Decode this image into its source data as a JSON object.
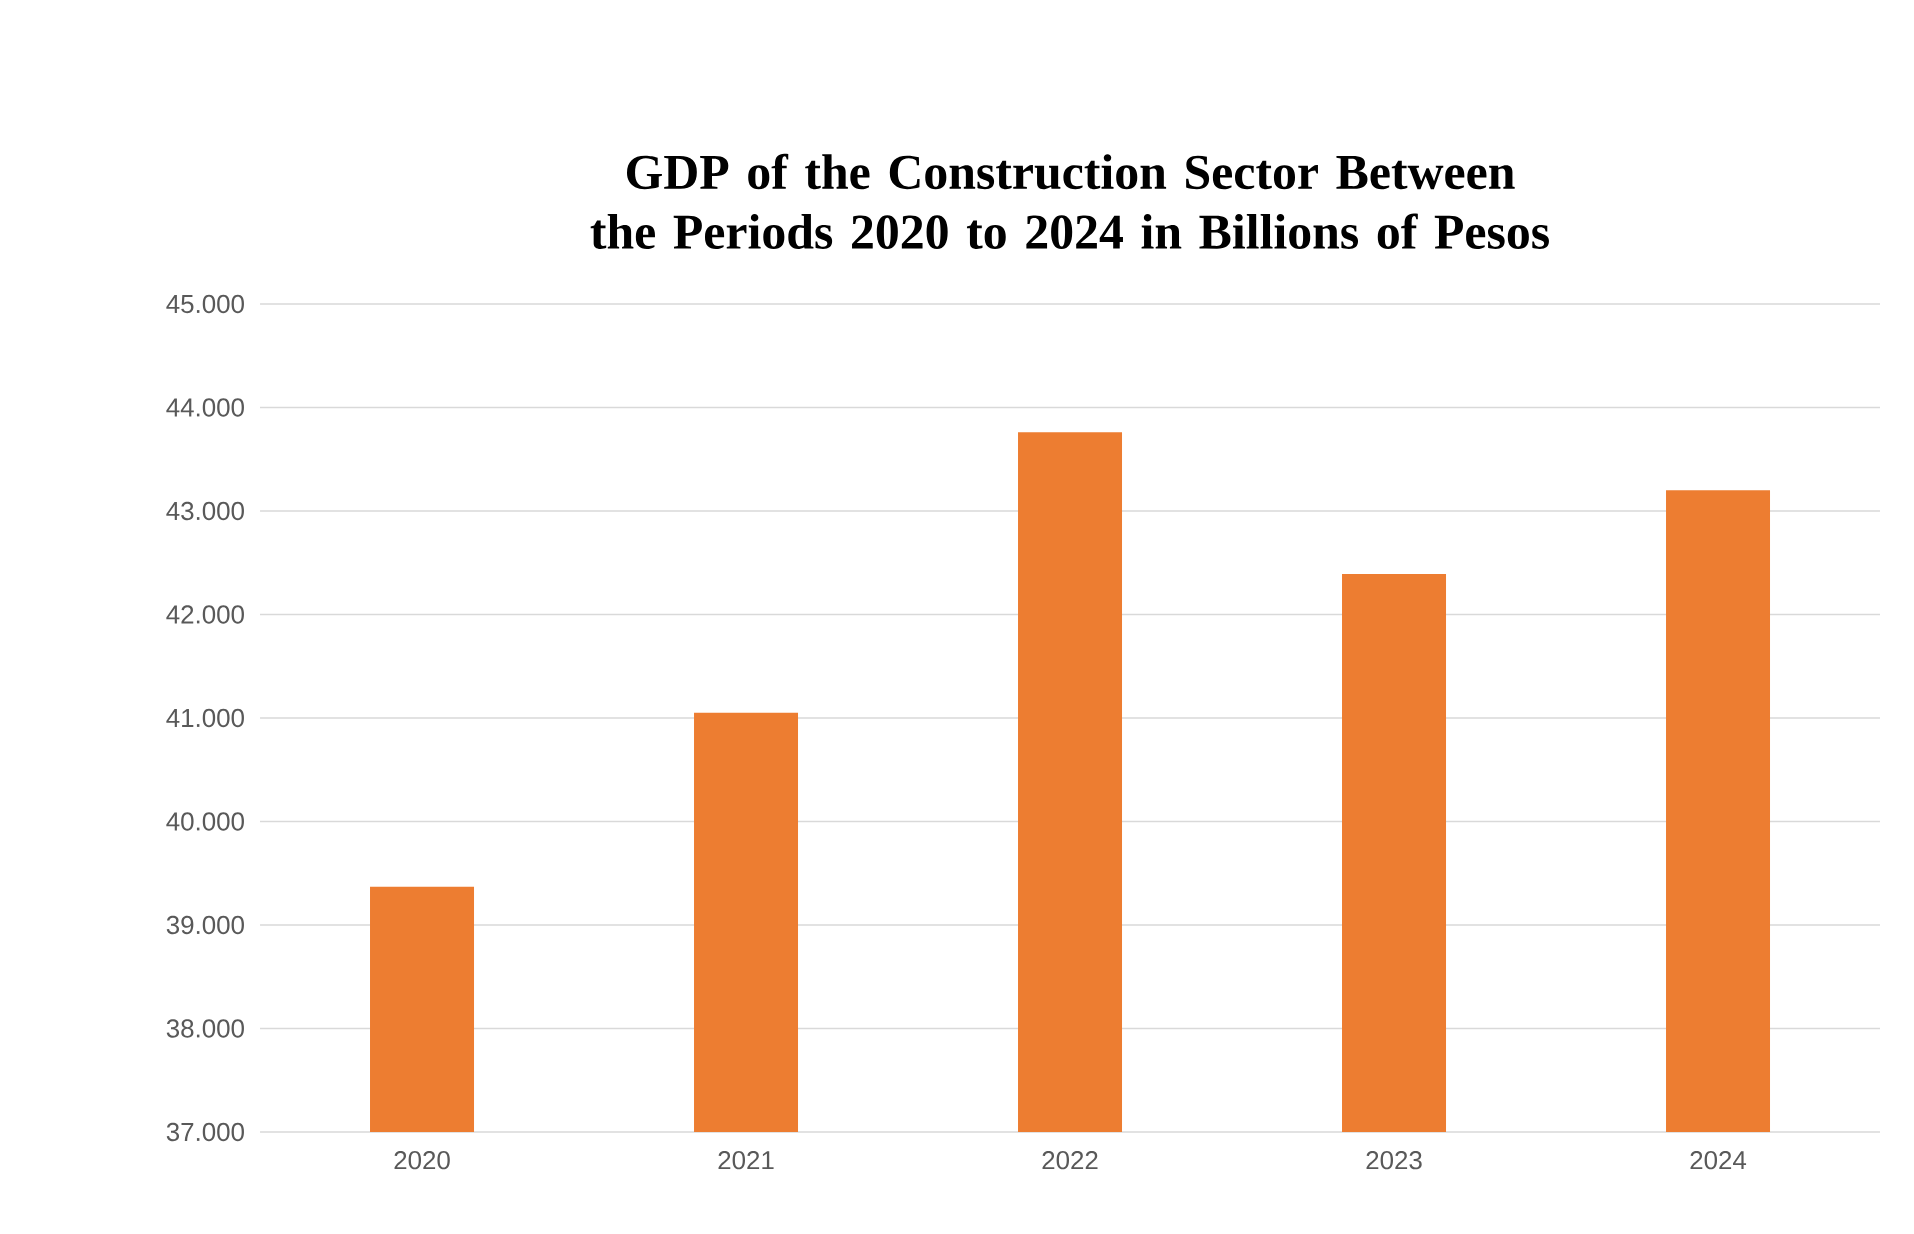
{
  "chart_data": {
    "type": "bar",
    "title": "GDP of the Construction Sector Between the Periods 2020 to 2024 in Billions of Pesos",
    "categories": [
      "2020",
      "2021",
      "2022",
      "2023",
      "2024"
    ],
    "values": [
      39370,
      41050,
      43760,
      42390,
      43200
    ],
    "color": "#ed7d31",
    "ylim": [
      37000,
      45000
    ],
    "yticks": [
      {
        "value": 37000,
        "label": "37.000"
      },
      {
        "value": 38000,
        "label": "38.000"
      },
      {
        "value": 39000,
        "label": "39.000"
      },
      {
        "value": 40000,
        "label": "40.000"
      },
      {
        "value": 41000,
        "label": "41.000"
      },
      {
        "value": 42000,
        "label": "42.000"
      },
      {
        "value": 43000,
        "label": "43.000"
      },
      {
        "value": 44000,
        "label": "44.000"
      },
      {
        "value": 45000,
        "label": "45.000"
      }
    ],
    "grid": "y"
  }
}
